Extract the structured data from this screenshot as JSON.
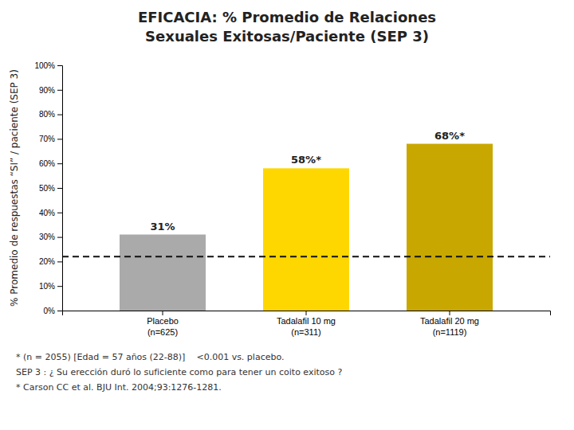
{
  "chart_data": {
    "type": "bar",
    "title": [
      "EFICACIA:  % Promedio de Relaciones",
      "Sexuales Exitosas/Paciente  (SEP 3)"
    ],
    "y_label": "% Promedio de respuestas “SI” / paciente (SEP 3)",
    "categories": [
      "Placebo\n(n=625)",
      "Tadalafil 10 mg\n(n=311)",
      "Tadalafil 20 mg\n(n=1119)"
    ],
    "values": [
      31,
      58,
      68
    ],
    "value_labels": [
      "31%",
      "58%*",
      "68%*"
    ],
    "data_labels": true,
    "colors": [
      "#aaaaaa",
      "#ffd700",
      "#c8a800"
    ],
    "reference_line": {
      "y": 22,
      "line_style": "dashed"
    },
    "ylim": [
      0,
      100
    ],
    "yticks": [
      {
        "value": 0,
        "label": "0%"
      },
      {
        "value": 10,
        "label": "10%"
      },
      {
        "value": 20,
        "label": "20%"
      },
      {
        "value": 30,
        "label": "30%"
      },
      {
        "value": 40,
        "label": "40%"
      },
      {
        "value": 50,
        "label": "50%"
      },
      {
        "value": 60,
        "label": "60%"
      },
      {
        "value": 70,
        "label": "70%"
      },
      {
        "value": 80,
        "label": "80%"
      },
      {
        "value": 90,
        "label": "90%"
      },
      {
        "value": 100,
        "label": "100%"
      }
    ],
    "grid": false,
    "annotations": [
      "* (n = 2055)  [Edad = 57 años (22-88)]",
      "<0.001 vs. placebo.",
      "SEP 3 : ¿ Su erección duró lo suficiente como para tener un coito exitoso ?",
      "* Carson CC et al. BJU Int. 2004;93:1276-1281."
    ]
  }
}
